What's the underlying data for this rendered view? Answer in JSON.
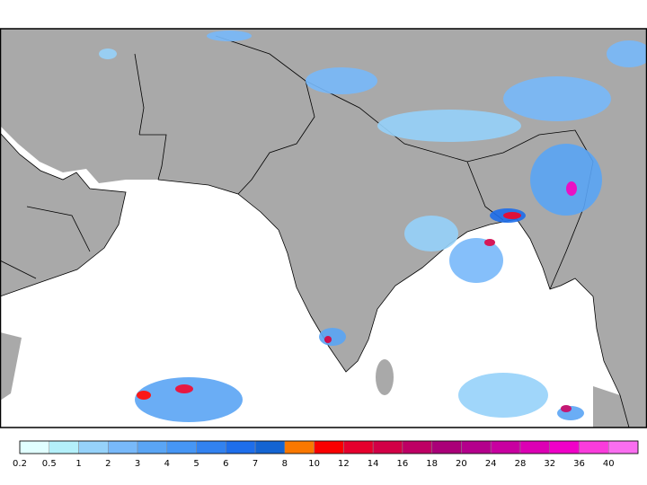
{
  "colorbar": {
    "labels": [
      "0.2",
      "0.5",
      "1",
      "2",
      "3",
      "4",
      "5",
      "6",
      "7",
      "8",
      "10",
      "12",
      "14",
      "16",
      "18",
      "20",
      "24",
      "28",
      "32",
      "36",
      "40"
    ],
    "colors": [
      "#e1ffff",
      "#b4f0fa",
      "#96d2fa",
      "#78b9fa",
      "#5aa5f5",
      "#4696f5",
      "#3282f0",
      "#1e6eeb",
      "#1464d2",
      "#fa7800",
      "#fa0000",
      "#e6002d",
      "#d20046",
      "#be0064",
      "#aa0078",
      "#b4008c",
      "#c800a0",
      "#dc00b4",
      "#f000c8",
      "#fa3cdc",
      "#fa6ef0"
    ]
  }
}
